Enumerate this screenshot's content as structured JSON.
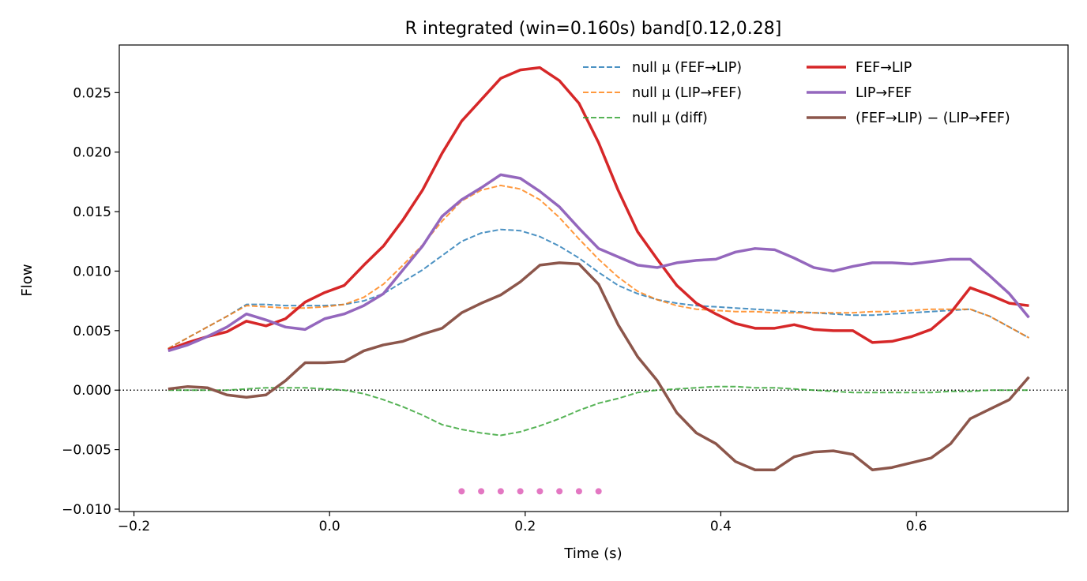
{
  "chart_data": {
    "type": "line",
    "title": "R integrated (win=0.160s)   band[0.12,0.28]",
    "xlabel": "Time (s)",
    "ylabel": "Flow",
    "xlim": [
      -0.215,
      0.755
    ],
    "ylim": [
      -0.0102,
      0.029
    ],
    "x_ticks": [
      -0.2,
      0.0,
      0.2,
      0.4,
      0.6
    ],
    "x_tick_labels": [
      "−0.2",
      "0.0",
      "0.2",
      "0.4",
      "0.6"
    ],
    "y_ticks": [
      -0.01,
      -0.005,
      0.0,
      0.005,
      0.01,
      0.015,
      0.02,
      0.025
    ],
    "y_tick_labels": [
      "−0.010",
      "−0.005",
      "0.000",
      "0.005",
      "0.010",
      "0.015",
      "0.020",
      "0.025"
    ],
    "grid": false,
    "legend_position": "top-right",
    "zero_line": {
      "y": 0,
      "style": "dotted",
      "color": "#000000"
    },
    "x": [
      -0.165,
      -0.145,
      -0.125,
      -0.105,
      -0.085,
      -0.065,
      -0.045,
      -0.025,
      -0.005,
      0.015,
      0.035,
      0.055,
      0.075,
      0.095,
      0.115,
      0.135,
      0.155,
      0.175,
      0.195,
      0.215,
      0.235,
      0.255,
      0.275,
      0.295,
      0.315,
      0.335,
      0.355,
      0.375,
      0.395,
      0.415,
      0.435,
      0.455,
      0.475,
      0.495,
      0.515,
      0.535,
      0.555,
      0.575,
      0.595,
      0.615,
      0.635,
      0.655,
      0.675,
      0.695,
      0.715
    ],
    "series": [
      {
        "name": "null μ (FEF→LIP)",
        "color": "#1f77b4",
        "style": "dashed",
        "width": 2,
        "opacity": 0.8,
        "values": [
          0.0035,
          0.0044,
          0.0053,
          0.0062,
          0.0072,
          0.0072,
          0.0071,
          0.0071,
          0.0071,
          0.0072,
          0.0075,
          0.0081,
          0.0091,
          0.0101,
          0.0113,
          0.0125,
          0.0132,
          0.0135,
          0.0134,
          0.0129,
          0.0121,
          0.0111,
          0.0099,
          0.0088,
          0.0081,
          0.0076,
          0.0073,
          0.0071,
          0.007,
          0.0069,
          0.0068,
          0.0067,
          0.0066,
          0.0065,
          0.0064,
          0.0063,
          0.0063,
          0.0064,
          0.0065,
          0.0066,
          0.0067,
          0.0068,
          0.0062,
          0.0053,
          0.0044
        ]
      },
      {
        "name": "null μ (LIP→FEF)",
        "color": "#ff7f0e",
        "style": "dashed",
        "width": 2,
        "opacity": 0.8,
        "values": [
          0.0035,
          0.0044,
          0.0053,
          0.0062,
          0.0071,
          0.007,
          0.0069,
          0.0069,
          0.007,
          0.0072,
          0.0078,
          0.0089,
          0.0105,
          0.0122,
          0.0142,
          0.0159,
          0.0168,
          0.0172,
          0.0169,
          0.016,
          0.0145,
          0.0127,
          0.011,
          0.0095,
          0.0083,
          0.0076,
          0.0071,
          0.0068,
          0.0067,
          0.0066,
          0.0066,
          0.0065,
          0.0065,
          0.0065,
          0.0065,
          0.0065,
          0.0066,
          0.0066,
          0.0067,
          0.0068,
          0.0068,
          0.0068,
          0.0062,
          0.0053,
          0.0044
        ]
      },
      {
        "name": "null μ (diff)",
        "color": "#2ca02c",
        "style": "dashed",
        "width": 2,
        "opacity": 0.8,
        "values": [
          0.0,
          0.0,
          0.0,
          0.0,
          0.0001,
          0.0002,
          0.0002,
          0.0002,
          0.0001,
          0.0,
          -0.0003,
          -0.0008,
          -0.0014,
          -0.0021,
          -0.0029,
          -0.0033,
          -0.0036,
          -0.0038,
          -0.0035,
          -0.003,
          -0.0024,
          -0.0017,
          -0.0011,
          -0.0007,
          -0.0002,
          0.0,
          0.0001,
          0.0002,
          0.0003,
          0.0003,
          0.0002,
          0.0002,
          0.0001,
          0.0,
          -0.0001,
          -0.0002,
          -0.0002,
          -0.0002,
          -0.0002,
          -0.0002,
          -0.0001,
          -0.0001,
          0.0,
          0.0,
          0.0
        ]
      },
      {
        "name": "FEF→LIP",
        "color": "#d62728",
        "style": "solid",
        "width": 3.5,
        "opacity": 1,
        "values": [
          0.0034,
          0.004,
          0.0045,
          0.0049,
          0.0058,
          0.0054,
          0.006,
          0.0074,
          0.0082,
          0.0088,
          0.0105,
          0.0121,
          0.0143,
          0.0168,
          0.0199,
          0.0226,
          0.0244,
          0.0262,
          0.0269,
          0.0271,
          0.026,
          0.0241,
          0.0208,
          0.0168,
          0.0133,
          0.011,
          0.0088,
          0.0073,
          0.0064,
          0.0056,
          0.0052,
          0.0052,
          0.0055,
          0.0051,
          0.005,
          0.005,
          0.004,
          0.0041,
          0.0045,
          0.0051,
          0.0065,
          0.0086,
          0.008,
          0.0073,
          0.0071
        ]
      },
      {
        "name": "LIP→FEF",
        "color": "#9467bd",
        "style": "solid",
        "width": 3.5,
        "opacity": 1,
        "values": [
          0.0033,
          0.0038,
          0.0045,
          0.0053,
          0.0064,
          0.0059,
          0.0053,
          0.0051,
          0.006,
          0.0064,
          0.0071,
          0.0081,
          0.0101,
          0.0121,
          0.0146,
          0.016,
          0.017,
          0.0181,
          0.0178,
          0.0167,
          0.0154,
          0.0136,
          0.0119,
          0.0112,
          0.0105,
          0.0103,
          0.0107,
          0.0109,
          0.011,
          0.0116,
          0.0119,
          0.0118,
          0.0111,
          0.0103,
          0.01,
          0.0104,
          0.0107,
          0.0107,
          0.0106,
          0.0108,
          0.011,
          0.011,
          0.0096,
          0.0081,
          0.0061
        ]
      },
      {
        "name": "(FEF→LIP) − (LIP→FEF)",
        "color": "#8c564b",
        "style": "solid",
        "width": 3.5,
        "opacity": 1,
        "values": [
          0.0001,
          0.0003,
          0.0002,
          -0.0004,
          -0.0006,
          -0.0004,
          0.0008,
          0.0023,
          0.0023,
          0.0024,
          0.0033,
          0.0038,
          0.0041,
          0.0047,
          0.0052,
          0.0065,
          0.0073,
          0.008,
          0.0091,
          0.0105,
          0.0107,
          0.0106,
          0.0089,
          0.0055,
          0.0028,
          0.0008,
          -0.0019,
          -0.0036,
          -0.0045,
          -0.006,
          -0.0067,
          -0.0067,
          -0.0056,
          -0.0052,
          -0.0051,
          -0.0054,
          -0.0067,
          -0.0065,
          -0.0061,
          -0.0057,
          -0.0045,
          -0.0024,
          -0.0016,
          -0.0008,
          0.0011
        ]
      }
    ],
    "markers": {
      "color": "#e377c2",
      "y": -0.0085,
      "x": [
        0.135,
        0.155,
        0.175,
        0.195,
        0.215,
        0.235,
        0.255,
        0.275
      ]
    }
  }
}
